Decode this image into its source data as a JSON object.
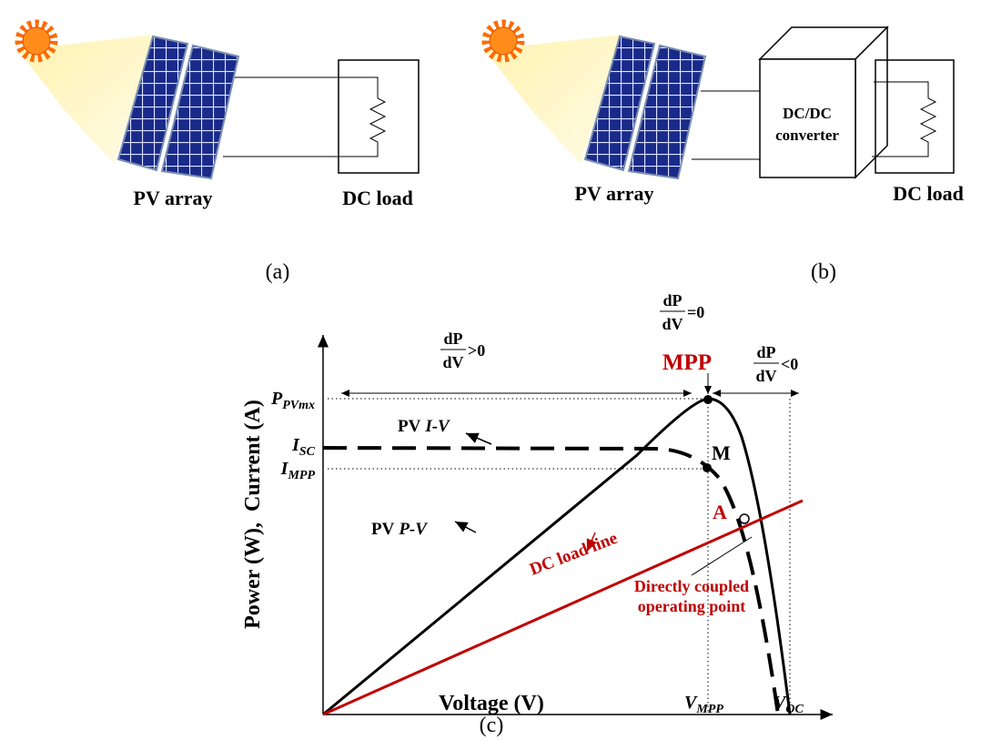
{
  "panel_a": {
    "pv_label": "PV array",
    "load_label": "DC load",
    "caption": "(a)"
  },
  "panel_b": {
    "pv_label": "PV array",
    "converter_label": [
      "DC/DC",
      "converter"
    ],
    "load_label": "DC load",
    "caption": "(b)"
  },
  "panel_c": {
    "caption": "(c)",
    "y_axis_label": "Power (W),  Current (A)",
    "x_axis_label": "Voltage (V)",
    "slope_regions": [
      {
        "numerator": "dP",
        "denominator": "dV",
        "relation": ">0"
      },
      {
        "numerator": "dP",
        "denominator": "dV",
        "relation": "=0"
      },
      {
        "numerator": "dP",
        "denominator": "dV",
        "relation": "<0"
      }
    ],
    "mpp_label": "MPP",
    "y_ticks": [
      {
        "main": "P",
        "sub": "PVmx"
      },
      {
        "main": "I",
        "sub": "SC"
      },
      {
        "main": "I",
        "sub": "MPP"
      }
    ],
    "x_ticks": [
      {
        "main": "V",
        "sub": "MPP"
      },
      {
        "main": "V",
        "sub": "OC"
      }
    ],
    "curve_labels": {
      "iv": {
        "prefix": "PV",
        "italic": "I-V"
      },
      "pv": {
        "prefix": "PV",
        "italic": "P-V"
      },
      "load_line": "DC load line"
    },
    "point_labels": {
      "m": "M",
      "a": "A"
    },
    "operating_point_label": [
      "Directly coupled",
      "operating point"
    ]
  }
}
